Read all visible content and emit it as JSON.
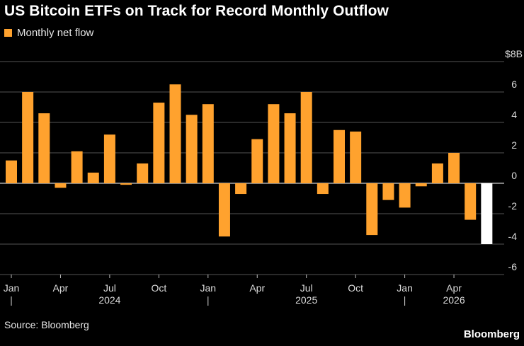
{
  "title": "US Bitcoin ETFs on Track for Record Monthly Outflow",
  "legend": {
    "label": "Monthly net flow"
  },
  "source": "Source: Bloomberg",
  "brand": "Bloomberg",
  "colors": {
    "bar": "#ffa22e",
    "current": "#ffffff",
    "grid": "#555555",
    "background": "#000000"
  },
  "chart_data": {
    "type": "bar",
    "title": "US Bitcoin ETFs on Track for Record Monthly Outflow",
    "legend": [
      "Monthly net flow"
    ],
    "legend_position": "top-left",
    "ylabel": "",
    "unit_label": "$8B",
    "ylim": [
      -6,
      8
    ],
    "yticks": [
      -6,
      -4,
      -2,
      0,
      2,
      4,
      6
    ],
    "grid": true,
    "categories": [
      "2024-01",
      "2024-02",
      "2024-03",
      "2024-04",
      "2024-05",
      "2024-06",
      "2024-07",
      "2024-08",
      "2024-09",
      "2024-10",
      "2024-11",
      "2024-12",
      "2025-01",
      "2025-02",
      "2025-03",
      "2025-04",
      "2025-05",
      "2025-06",
      "2025-07",
      "2025-08",
      "2025-09",
      "2025-10",
      "2025-11",
      "2025-12",
      "2026-01",
      "2026-02",
      "2026-03",
      "2026-04",
      "2026-05",
      "2026-06"
    ],
    "series": [
      {
        "name": "Monthly net flow",
        "values": [
          1.5,
          6.0,
          4.6,
          -0.3,
          2.1,
          0.7,
          3.2,
          -0.1,
          1.3,
          5.3,
          6.5,
          4.5,
          5.2,
          -3.5,
          -0.7,
          2.9,
          5.2,
          4.6,
          6.0,
          -0.7,
          3.5,
          3.4,
          -3.4,
          -1.1,
          -1.6,
          -0.2,
          1.3,
          2.0,
          -2.4,
          -4.0
        ],
        "highlight_last": true
      }
    ],
    "x_tick_labels": [
      {
        "label": "Jan",
        "index": 0
      },
      {
        "label": "Apr",
        "index": 3
      },
      {
        "label": "Jul",
        "index": 6
      },
      {
        "label": "Oct",
        "index": 9
      },
      {
        "label": "Jan",
        "index": 12
      },
      {
        "label": "Apr",
        "index": 15
      },
      {
        "label": "Jul",
        "index": 18
      },
      {
        "label": "Oct",
        "index": 21
      },
      {
        "label": "Jan",
        "index": 24
      },
      {
        "label": "Apr",
        "index": 27
      }
    ],
    "year_labels": [
      {
        "label": "2024",
        "index": 6
      },
      {
        "label": "2025",
        "index": 18
      },
      {
        "label": "2026",
        "index": 27
      }
    ],
    "year_separators": [
      0,
      12,
      24
    ]
  }
}
